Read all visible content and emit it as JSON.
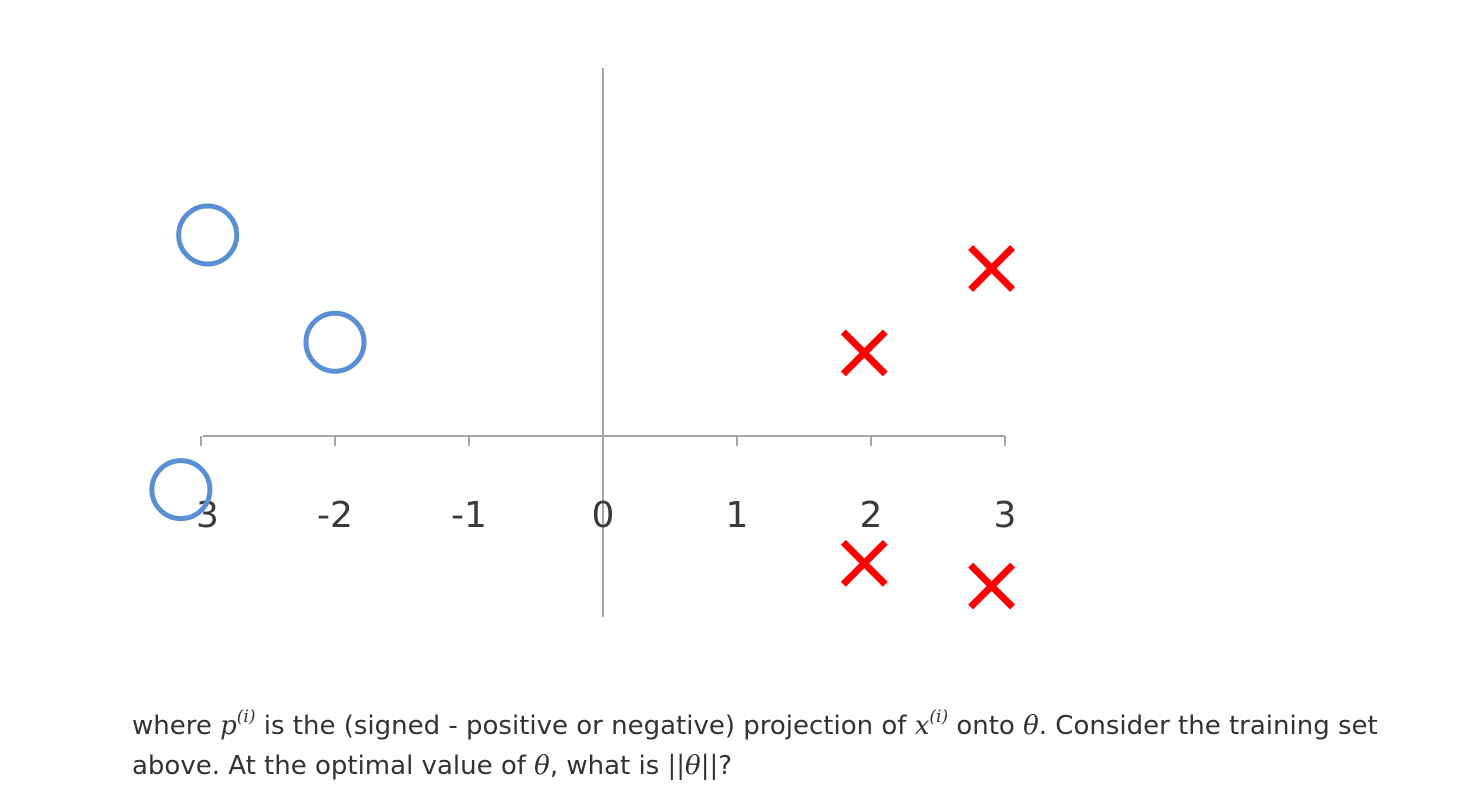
{
  "chart_data": {
    "type": "scatter",
    "xlim": [
      -3,
      3
    ],
    "ylim": [
      -1.4,
      2.7
    ],
    "x_tick_labels": [
      "-3",
      "-2",
      "-1",
      "0",
      "1",
      "2",
      "3"
    ],
    "x_ticks": [
      -3,
      -2,
      -1,
      0,
      1,
      2,
      3
    ],
    "grid": false,
    "legend": "none",
    "series": [
      {
        "marker": "circle",
        "color": "#5b8fd4",
        "points": [
          {
            "x": -2.95,
            "y": 1.5
          },
          {
            "x": -2.0,
            "y": 0.7
          },
          {
            "x": -3.15,
            "y": -0.4
          }
        ]
      },
      {
        "marker": "x",
        "color": "#ff0000",
        "points": [
          {
            "x": 2.9,
            "y": 1.25
          },
          {
            "x": 1.95,
            "y": 0.62
          },
          {
            "x": 1.95,
            "y": -0.95
          },
          {
            "x": 2.9,
            "y": -1.12
          }
        ]
      }
    ]
  },
  "question": {
    "t1": "where ",
    "p": "p",
    "sup_i_1": "(i)",
    "t2": " is the (signed - positive or negative) projection of ",
    "x": "x",
    "sup_i_2": "(i)",
    "t3": " onto ",
    "theta1": "θ",
    "t4": ". Consider the training set above. At the optimal value of ",
    "theta2": "θ",
    "t5": ", what is ",
    "norm": "||θ||",
    "t6": "?"
  }
}
